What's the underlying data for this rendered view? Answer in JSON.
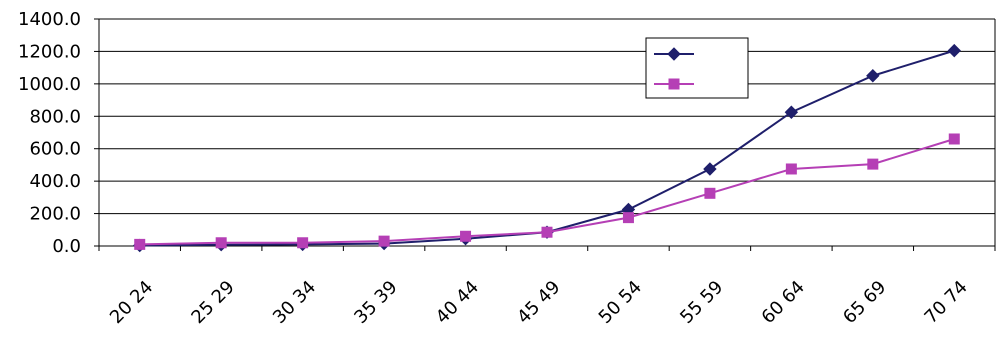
{
  "chart_data": {
    "type": "line",
    "title": "",
    "xlabel": "",
    "ylabel": "",
    "categories": [
      "20 24",
      "25 29",
      "30 34",
      "35 39",
      "40 44",
      "45 49",
      "50 54",
      "55 59",
      "60 64",
      "65 69",
      "70 74"
    ],
    "ylim": [
      0,
      1400
    ],
    "yticks": [
      "0.0",
      "200.0",
      "400.0",
      "600.0",
      "800.0",
      "1000.0",
      "1200.0",
      "1400.0"
    ],
    "grid": true,
    "legend": "top-right",
    "series": [
      {
        "color": "#1f1f6b",
        "marker": "diamond",
        "values": [
          3,
          8,
          10,
          15,
          45,
          85,
          225,
          475,
          825,
          1050,
          1205
        ]
      },
      {
        "color": "#b53fb5",
        "marker": "square",
        "values": [
          10,
          20,
          20,
          30,
          60,
          85,
          175,
          325,
          475,
          505,
          660
        ]
      }
    ]
  }
}
